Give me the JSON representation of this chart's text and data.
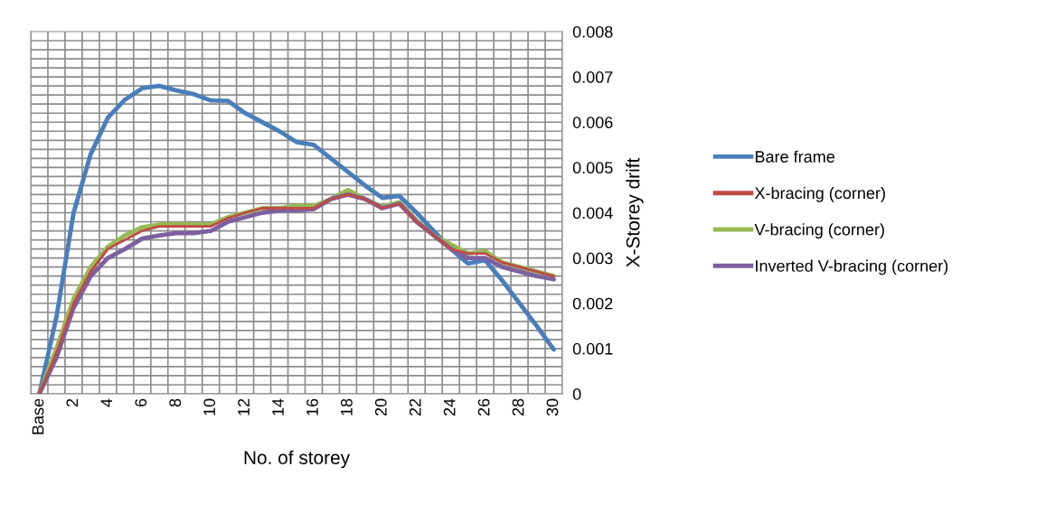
{
  "chart_data": {
    "type": "line",
    "xlabel": "No. of storey",
    "ylabel": "X-Storey drift",
    "categories": [
      "Base",
      null,
      "2",
      null,
      "4",
      null,
      "6",
      null,
      "8",
      null,
      "10",
      null,
      "12",
      null,
      "14",
      null,
      "16",
      null,
      "18",
      null,
      "20",
      null,
      "22",
      null,
      "24",
      null,
      "26",
      null,
      "28",
      null,
      "30"
    ],
    "series": [
      {
        "name": "Bare frame",
        "color": "#4a7ebb",
        "values": [
          0,
          0.0017,
          0.004,
          0.0053,
          0.0061,
          0.0065,
          0.00675,
          0.0068,
          0.0067,
          0.00662,
          0.00648,
          0.00647,
          0.0062,
          0.006,
          0.0058,
          0.00556,
          0.0055,
          0.0052,
          0.0049,
          0.0046,
          0.00433,
          0.00437,
          0.004,
          0.0036,
          0.0032,
          0.00288,
          0.00295,
          0.0025,
          0.002,
          0.0015,
          0.00098
        ]
      },
      {
        "name": "X-bracing (corner)",
        "color": "#be4b48",
        "values": [
          0,
          0.0009,
          0.002,
          0.0027,
          0.0032,
          0.0034,
          0.0036,
          0.0037,
          0.0037,
          0.0037,
          0.0037,
          0.00388,
          0.004,
          0.0041,
          0.0041,
          0.0041,
          0.0041,
          0.0043,
          0.0044,
          0.0043,
          0.0041,
          0.0042,
          0.0038,
          0.0035,
          0.0032,
          0.0031,
          0.0031,
          0.0029,
          0.0028,
          0.0027,
          0.0026
        ]
      },
      {
        "name": "V-bracing (corner)",
        "color": "#98b954",
        "values": [
          0,
          0.001,
          0.0021,
          0.0028,
          0.00325,
          0.0035,
          0.00368,
          0.00374,
          0.00375,
          0.00374,
          0.00374,
          0.0039,
          0.004,
          0.0041,
          0.0041,
          0.00415,
          0.00415,
          0.0043,
          0.0045,
          0.0043,
          0.00413,
          0.00423,
          0.00383,
          0.0035,
          0.0033,
          0.0031,
          0.00315,
          0.0029,
          0.0028,
          0.0027,
          0.0026
        ]
      },
      {
        "name": "Inverted V-bracing (corner)",
        "color": "#7d60a0",
        "values": [
          0,
          0.0008,
          0.0019,
          0.0026,
          0.003,
          0.0032,
          0.00343,
          0.0035,
          0.00355,
          0.00355,
          0.0036,
          0.0038,
          0.0039,
          0.004,
          0.00405,
          0.00405,
          0.00408,
          0.0043,
          0.0044,
          0.0043,
          0.0041,
          0.0042,
          0.0038,
          0.0035,
          0.0032,
          0.003,
          0.003,
          0.0028,
          0.0027,
          0.0026,
          0.00253
        ]
      }
    ],
    "ylim": [
      0,
      0.008
    ],
    "yticks": [
      0,
      0.001,
      0.002,
      0.003,
      0.004,
      0.005,
      0.006,
      0.007,
      0.008
    ],
    "grid": true,
    "legend": "right",
    "marker": "none",
    "line_style": "solid"
  }
}
